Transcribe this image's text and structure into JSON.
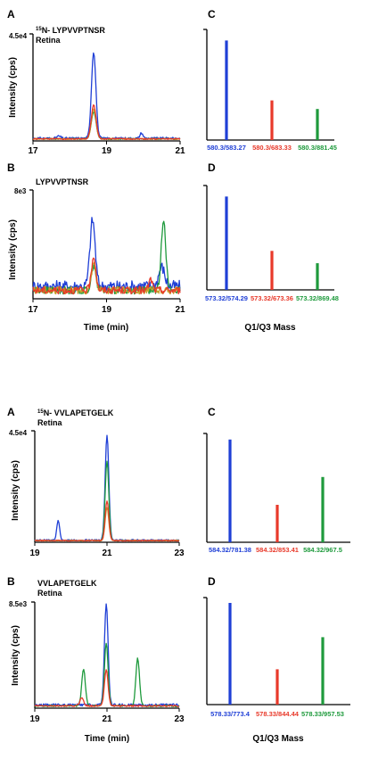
{
  "colors": {
    "blue": "#1f3fd6",
    "red": "#e8392a",
    "green": "#1e9a3c",
    "orange": "#c7a12a",
    "axis": "#000000"
  },
  "upper": {
    "chromatograms": [
      {
        "panel_label": "A",
        "title_super": "15",
        "title_main": "N- LYPVVPTNSR",
        "subtitle": "Retina",
        "y_top_label": "4.5e4",
        "ylabel": "Intensity (cps)",
        "xlabel": "",
        "xlim": [
          17,
          21
        ],
        "x_ticks": [
          "17",
          "19",
          "21"
        ],
        "peaks": [
          {
            "series": "blue",
            "center": 18.65,
            "width": 0.06,
            "height": 0.82
          },
          {
            "series": "red",
            "center": 18.65,
            "width": 0.065,
            "height": 0.32
          },
          {
            "series": "orange",
            "center": 18.65,
            "width": 0.065,
            "height": 0.28
          },
          {
            "series": "green",
            "center": 18.65,
            "width": 0.065,
            "height": 0.26
          },
          {
            "series": "blue",
            "center": 19.95,
            "width": 0.04,
            "height": 0.05
          },
          {
            "series": "blue",
            "center": 17.7,
            "width": 0.05,
            "height": 0.02
          }
        ]
      },
      {
        "panel_label": "B",
        "title_super": "",
        "title_main": "LYPVVPTNSR",
        "subtitle": "Retina",
        "y_top_label": "8e3",
        "ylabel": "Intensity (cps)",
        "xlabel": "Time (min)",
        "xlim": [
          17,
          21
        ],
        "x_ticks": [
          "17",
          "19",
          "21"
        ],
        "peaks": [
          {
            "series": "blue",
            "center": 18.62,
            "width": 0.07,
            "height": 0.62
          },
          {
            "series": "red",
            "center": 18.65,
            "width": 0.06,
            "height": 0.32
          },
          {
            "series": "orange",
            "center": 18.65,
            "width": 0.06,
            "height": 0.26
          },
          {
            "series": "green",
            "center": 18.65,
            "width": 0.06,
            "height": 0.24
          },
          {
            "series": "green",
            "center": 20.55,
            "width": 0.06,
            "height": 0.68
          },
          {
            "series": "blue",
            "center": 20.5,
            "width": 0.08,
            "height": 0.18
          },
          {
            "series": "red",
            "center": 20.2,
            "width": 0.05,
            "height": 0.1
          }
        ]
      }
    ],
    "mrm": [
      {
        "panel_label": "C",
        "xlabel": "",
        "bars": [
          {
            "label": "580.3/583.27",
            "series": "blue",
            "value": 0.93
          },
          {
            "label": "580.3/683.33",
            "series": "red",
            "value": 0.37
          },
          {
            "label": "580.3/881.45",
            "series": "green",
            "value": 0.29
          }
        ]
      },
      {
        "panel_label": "D",
        "xlabel": "Q1/Q3 Mass",
        "bars": [
          {
            "label": "573.32/574.29",
            "series": "blue",
            "value": 0.91
          },
          {
            "label": "573.32/673.36",
            "series": "red",
            "value": 0.38
          },
          {
            "label": "573.32/869.48",
            "series": "green",
            "value": 0.26
          }
        ]
      }
    ]
  },
  "lower": {
    "chromatograms": [
      {
        "panel_label": "A",
        "title_super": "15",
        "title_main": "N- VVLAPETGELK",
        "subtitle": "Retina",
        "y_top_label": "4.5e4",
        "ylabel": "Intensity (cps)",
        "xlabel": "",
        "xlim": [
          19,
          23
        ],
        "x_ticks": [
          "19",
          "21",
          "23"
        ],
        "peaks": [
          {
            "series": "blue",
            "center": 21.0,
            "width": 0.05,
            "height": 0.95
          },
          {
            "series": "green",
            "center": 21.0,
            "width": 0.05,
            "height": 0.72
          },
          {
            "series": "red",
            "center": 21.0,
            "width": 0.05,
            "height": 0.36
          },
          {
            "series": "orange",
            "center": 21.0,
            "width": 0.05,
            "height": 0.3
          },
          {
            "series": "blue",
            "center": 19.65,
            "width": 0.04,
            "height": 0.18
          }
        ]
      },
      {
        "panel_label": "B",
        "title_super": "",
        "title_main": "VVLAPETGELK",
        "subtitle": "Retina",
        "y_top_label": "8.5e3",
        "ylabel": "Intensity (cps)",
        "xlabel": "Time (min)",
        "xlim": [
          19,
          23
        ],
        "x_ticks": [
          "19",
          "21",
          "23"
        ],
        "peaks": [
          {
            "series": "blue",
            "center": 20.98,
            "width": 0.05,
            "height": 0.97
          },
          {
            "series": "green",
            "center": 20.98,
            "width": 0.05,
            "height": 0.6
          },
          {
            "series": "red",
            "center": 20.98,
            "width": 0.05,
            "height": 0.35
          },
          {
            "series": "green",
            "center": 21.85,
            "width": 0.05,
            "height": 0.45
          },
          {
            "series": "green",
            "center": 20.35,
            "width": 0.05,
            "height": 0.35
          },
          {
            "series": "red",
            "center": 20.3,
            "width": 0.05,
            "height": 0.08
          }
        ]
      }
    ],
    "mrm": [
      {
        "panel_label": "C",
        "xlabel": "",
        "bars": [
          {
            "label": "584.32/781.38",
            "series": "blue",
            "value": 0.96
          },
          {
            "label": "584.32/853.41",
            "series": "red",
            "value": 0.35
          },
          {
            "label": "584.32/967.5",
            "series": "green",
            "value": 0.61
          }
        ]
      },
      {
        "panel_label": "D",
        "xlabel": "Q1/Q3 Mass",
        "bars": [
          {
            "label": "578.33/773.4",
            "series": "blue",
            "value": 0.95
          },
          {
            "label": "578.33/844.44",
            "series": "red",
            "value": 0.33
          },
          {
            "label": "578.33/957.53",
            "series": "green",
            "value": 0.63
          }
        ]
      }
    ]
  },
  "chart_data": [
    {
      "type": "line",
      "title": "15N- LYPVVPTNSR Retina",
      "xlabel": "",
      "ylabel": "Intensity (cps)",
      "xlim": [
        17,
        21
      ],
      "ylim": [
        0,
        45000
      ],
      "note_series": "Four overlaid transition traces (blue, red, orange, green); main peak near 18.6 min"
    },
    {
      "type": "line",
      "title": "LYPVVPTNSR Retina",
      "xlabel": "Time (min)",
      "ylabel": "Intensity (cps)",
      "xlim": [
        17,
        21
      ],
      "ylim": [
        0,
        8000
      ]
    },
    {
      "type": "bar",
      "categories": [
        "580.3/583.27",
        "580.3/683.33",
        "580.3/881.45"
      ],
      "values": [
        0.93,
        0.37,
        0.29
      ],
      "xlabel": ""
    },
    {
      "type": "bar",
      "categories": [
        "573.32/574.29",
        "573.32/673.36",
        "573.32/869.48"
      ],
      "values": [
        0.91,
        0.38,
        0.26
      ],
      "xlabel": "Q1/Q3 Mass"
    },
    {
      "type": "line",
      "title": "15N- VVLAPETGELK Retina",
      "xlabel": "",
      "ylabel": "Intensity (cps)",
      "xlim": [
        19,
        23
      ],
      "ylim": [
        0,
        45000
      ]
    },
    {
      "type": "line",
      "title": "VVLAPETGELK Retina",
      "xlabel": "Time (min)",
      "ylabel": "Intensity (cps)",
      "xlim": [
        19,
        23
      ],
      "ylim": [
        0,
        8500
      ]
    },
    {
      "type": "bar",
      "categories": [
        "584.32/781.38",
        "584.32/853.41",
        "584.32/967.5"
      ],
      "values": [
        0.96,
        0.35,
        0.61
      ],
      "xlabel": ""
    },
    {
      "type": "bar",
      "categories": [
        "578.33/773.4",
        "578.33/844.44",
        "578.33/957.53"
      ],
      "values": [
        0.95,
        0.33,
        0.63
      ],
      "xlabel": "Q1/Q3 Mass"
    }
  ]
}
